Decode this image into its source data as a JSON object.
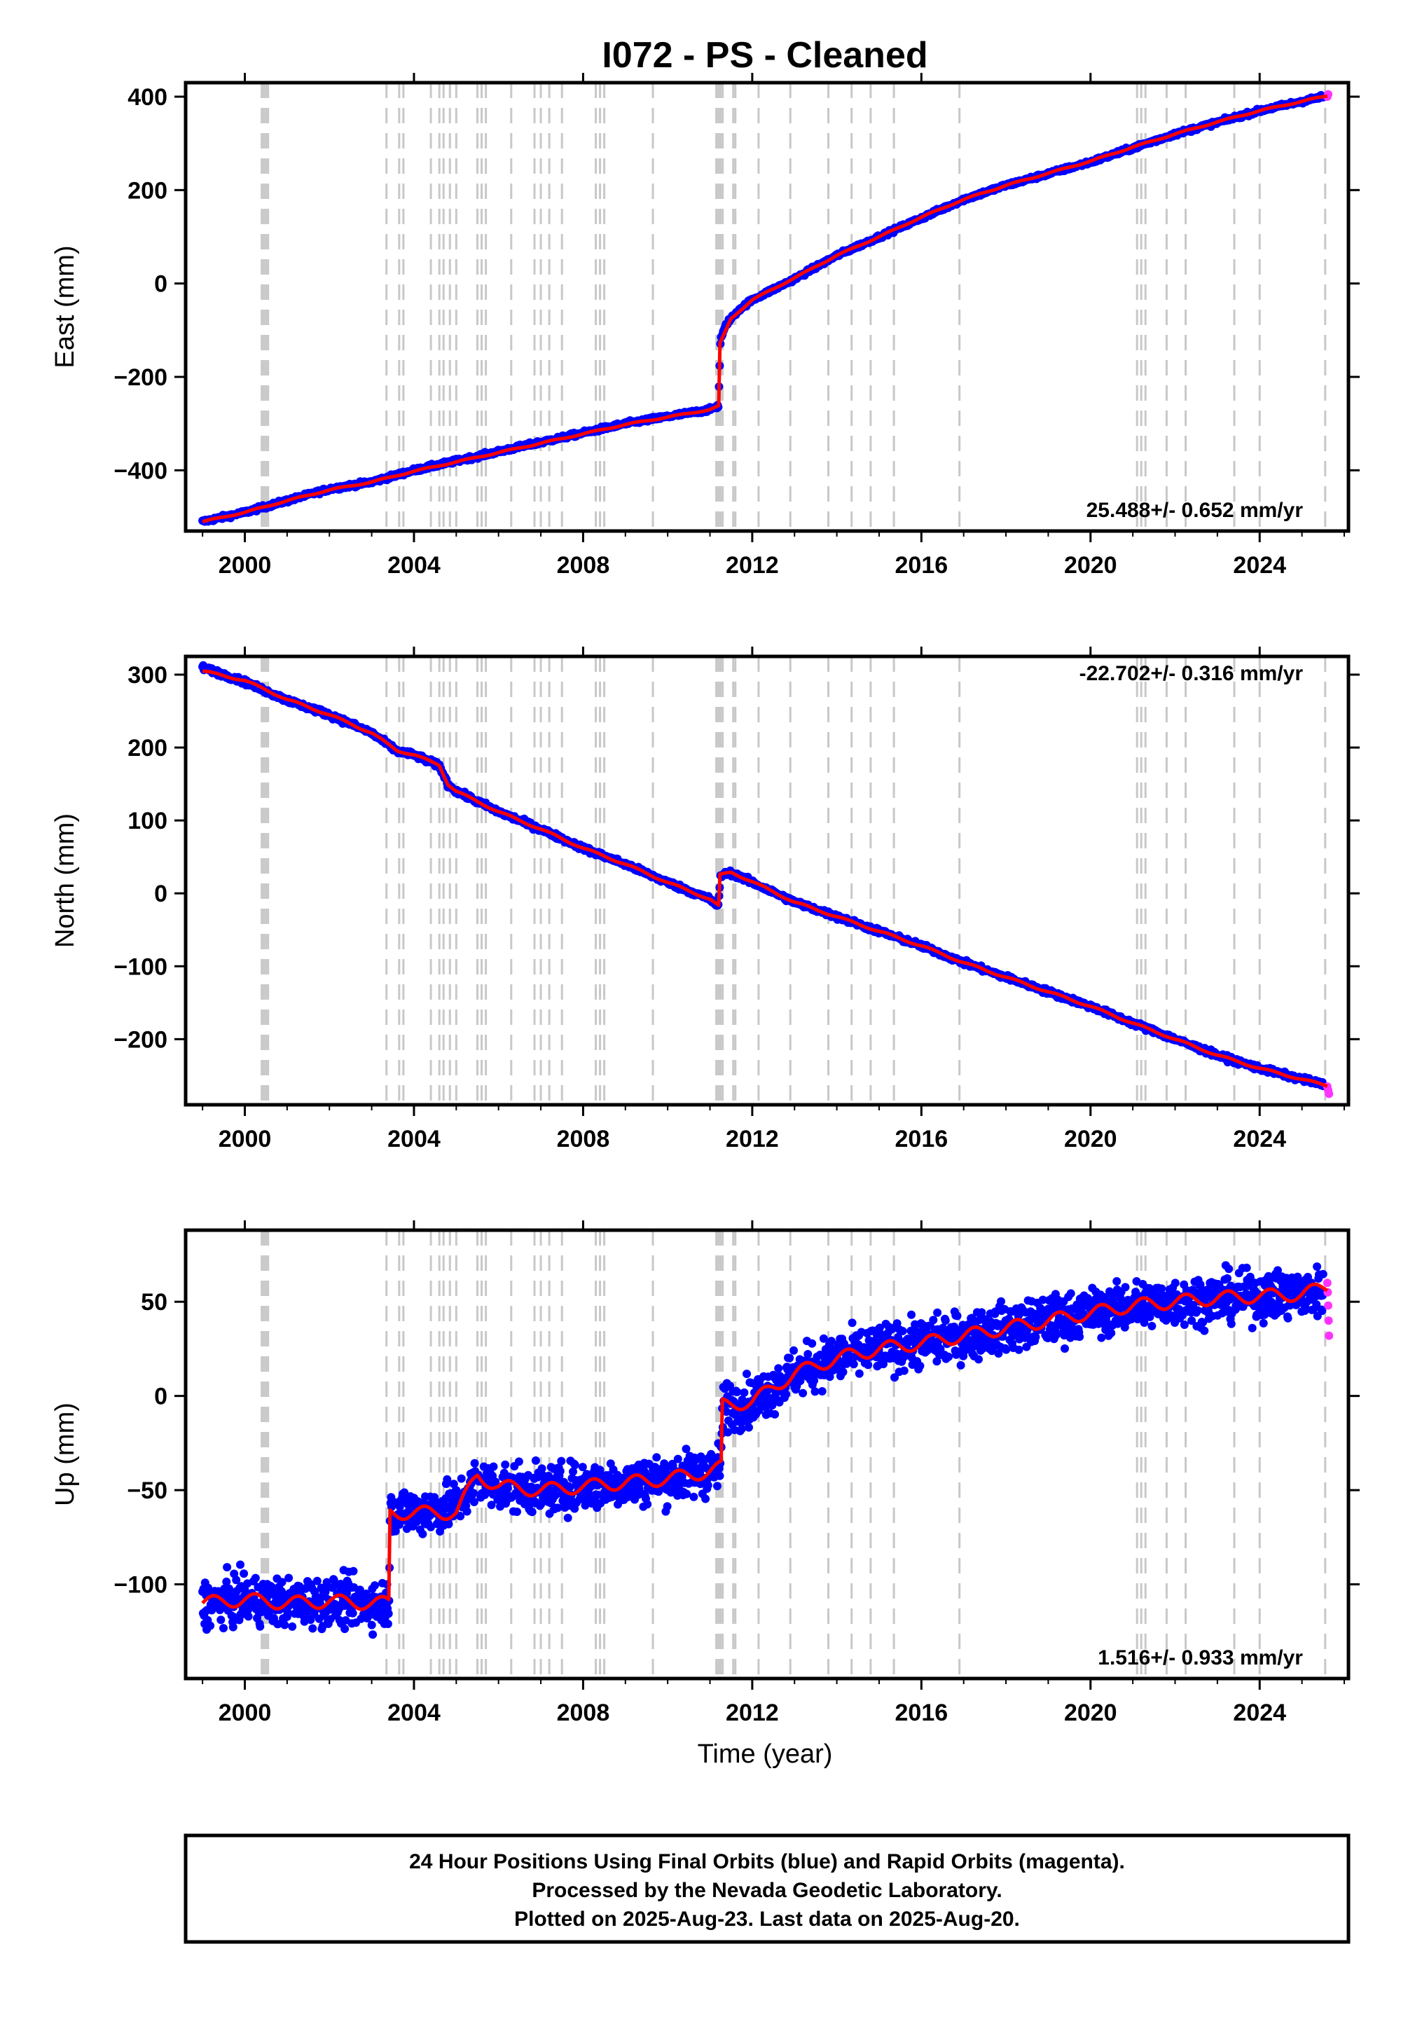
{
  "title": "I072  - PS - Cleaned",
  "xlabel": "Time (year)",
  "x_ticks": [
    2000,
    2004,
    2008,
    2012,
    2016,
    2020,
    2024
  ],
  "x_range": [
    1998.6,
    2026.1
  ],
  "colors": {
    "final_orbits": "#0000ff",
    "rapid_orbits": "#ff33ff",
    "model": "#ff0000",
    "event_lines": "#c8c8c8",
    "frame": "#000000"
  },
  "event_lines": [
    2000.4,
    2000.45,
    2000.5,
    2000.55,
    2003.35,
    2003.65,
    2003.75,
    2004.4,
    2004.6,
    2004.7,
    2004.85,
    2005.0,
    2005.5,
    2005.6,
    2005.7,
    2006.3,
    2006.85,
    2007.0,
    2007.2,
    2007.5,
    2008.3,
    2008.4,
    2008.5,
    2009.65,
    2011.15,
    2011.2,
    2011.25,
    2011.3,
    2011.55,
    2011.6,
    2012.15,
    2012.9,
    2013.8,
    2014.35,
    2014.8,
    2015.35,
    2016.9,
    2021.1,
    2021.2,
    2021.3,
    2021.8,
    2022.25,
    2023.4,
    2024.0,
    2025.55
  ],
  "chart_data": [
    {
      "type": "scatter",
      "title": "I072  - PS - Cleaned",
      "xlabel": "",
      "ylabel": "East (mm)",
      "xlim": [
        1998.6,
        2026.1
      ],
      "ylim": [
        -530,
        430
      ],
      "yticks": [
        -400,
        -200,
        0,
        200,
        400
      ],
      "rate": "25.488+/- 0.652 mm/yr",
      "rate_position": "bottom-right",
      "series": [
        {
          "name": "Final Orbits",
          "x": [
            1999.0,
            2000.0,
            2001.0,
            2002.0,
            2003.0,
            2004.0,
            2005.0,
            2006.0,
            2007.0,
            2008.0,
            2009.0,
            2010.0,
            2011.0,
            2011.2,
            2011.25,
            2011.4,
            2011.7,
            2012.0,
            2013.0,
            2014.0,
            2015.0,
            2016.0,
            2017.0,
            2018.0,
            2019.0,
            2020.0,
            2021.0,
            2022.0,
            2023.0,
            2024.0,
            2025.0,
            2025.5
          ],
          "y": [
            -510,
            -490,
            -465,
            -440,
            -425,
            -400,
            -380,
            -360,
            -340,
            -320,
            -300,
            -285,
            -270,
            -262,
            -120,
            -85,
            -55,
            -35,
            10,
            60,
            100,
            140,
            180,
            210,
            235,
            260,
            290,
            320,
            345,
            370,
            390,
            400
          ]
        },
        {
          "name": "Rapid Orbits",
          "x": [
            2025.6,
            2025.62
          ],
          "y": [
            400,
            405
          ]
        }
      ],
      "model": {
        "x": [
          1999.0,
          2000.0,
          2001.0,
          2002.0,
          2003.0,
          2004.0,
          2005.0,
          2006.0,
          2007.0,
          2008.0,
          2009.0,
          2010.0,
          2011.0,
          2011.22,
          2011.23,
          2011.5,
          2012.0,
          2013.0,
          2014.0,
          2015.0,
          2016.0,
          2017.0,
          2018.0,
          2019.0,
          2020.0,
          2021.0,
          2022.0,
          2023.0,
          2024.0,
          2025.0,
          2025.6
        ],
        "y": [
          -510,
          -490,
          -465,
          -442,
          -425,
          -402,
          -382,
          -362,
          -342,
          -322,
          -302,
          -286,
          -270,
          -262,
          -130,
          -75,
          -35,
          12,
          60,
          100,
          142,
          180,
          210,
          236,
          262,
          292,
          320,
          346,
          370,
          390,
          402
        ]
      }
    },
    {
      "type": "scatter",
      "title": "",
      "xlabel": "",
      "ylabel": "North (mm)",
      "xlim": [
        1998.6,
        2026.1
      ],
      "ylim": [
        -290,
        325
      ],
      "yticks": [
        -200,
        -100,
        0,
        100,
        200,
        300
      ],
      "rate": "-22.702+/- 0.316 mm/yr",
      "rate_position": "top-right",
      "series": [
        {
          "name": "Final Orbits",
          "x": [
            1999.0,
            2000.0,
            2001.0,
            2002.0,
            2003.0,
            2003.6,
            2004.0,
            2004.6,
            2004.8,
            2005.0,
            2006.0,
            2007.0,
            2008.0,
            2009.0,
            2010.0,
            2011.0,
            2011.2,
            2011.25,
            2011.5,
            2012.0,
            2013.0,
            2014.0,
            2015.0,
            2016.0,
            2017.0,
            2018.0,
            2019.0,
            2020.0,
            2021.0,
            2022.0,
            2023.0,
            2024.0,
            2025.0,
            2025.5
          ],
          "y": [
            310,
            290,
            265,
            245,
            220,
            195,
            190,
            175,
            150,
            140,
            112,
            88,
            62,
            40,
            15,
            -8,
            -18,
            25,
            28,
            15,
            -12,
            -32,
            -52,
            -72,
            -95,
            -115,
            -135,
            -155,
            -178,
            -200,
            -222,
            -240,
            -255,
            -262
          ]
        },
        {
          "name": "Rapid Orbits",
          "x": [
            2025.6,
            2025.62,
            2025.64
          ],
          "y": [
            -265,
            -270,
            -275
          ]
        }
      ],
      "model": {
        "x": [
          1999.0,
          2000.0,
          2001.0,
          2002.0,
          2003.0,
          2003.6,
          2004.0,
          2004.6,
          2004.8,
          2005.0,
          2006.0,
          2007.0,
          2008.0,
          2009.0,
          2010.0,
          2011.0,
          2011.22,
          2011.23,
          2011.5,
          2012.0,
          2013.0,
          2014.0,
          2015.0,
          2016.0,
          2017.0,
          2018.0,
          2019.0,
          2020.0,
          2021.0,
          2022.0,
          2023.0,
          2024.0,
          2025.0,
          2025.6
        ],
        "y": [
          305,
          292,
          266,
          245,
          220,
          196,
          190,
          176,
          150,
          140,
          112,
          88,
          62,
          40,
          15,
          -8,
          -18,
          25,
          29,
          16,
          -12,
          -32,
          -52,
          -72,
          -95,
          -115,
          -135,
          -155,
          -178,
          -200,
          -222,
          -240,
          -255,
          -264
        ]
      }
    },
    {
      "type": "scatter",
      "title": "",
      "xlabel": "Time (year)",
      "ylabel": "Up (mm)",
      "xlim": [
        1998.6,
        2026.1
      ],
      "ylim": [
        -150,
        88
      ],
      "yticks": [
        -100,
        -50,
        0,
        50
      ],
      "rate": "1.516+/- 0.933 mm/yr",
      "rate_position": "bottom-right",
      "series": [
        {
          "name": "Final Orbits",
          "x": [
            1999.0,
            2000.0,
            2001.0,
            2002.0,
            2003.0,
            2003.4,
            2003.45,
            2004.0,
            2005.0,
            2005.5,
            2006.0,
            2007.0,
            2008.0,
            2009.0,
            2010.0,
            2011.0,
            2011.25,
            2011.3,
            2012.0,
            2013.0,
            2014.0,
            2015.0,
            2016.0,
            2017.0,
            2018.0,
            2019.0,
            2020.0,
            2021.0,
            2022.0,
            2023.0,
            2024.0,
            2025.0,
            2025.5
          ],
          "y": [
            -110,
            -108,
            -110,
            -109,
            -110,
            -110,
            -60,
            -62,
            -58,
            -45,
            -48,
            -50,
            -48,
            -46,
            -44,
            -40,
            -38,
            -5,
            -3,
            12,
            20,
            25,
            28,
            32,
            36,
            40,
            44,
            48,
            50,
            52,
            53,
            54,
            56
          ]
        },
        {
          "name": "Rapid Orbits",
          "x": [
            2025.6,
            2025.61,
            2025.62,
            2025.63,
            2025.64
          ],
          "y": [
            60,
            55,
            48,
            40,
            32
          ]
        }
      ],
      "model": {
        "x": [
          1999.0,
          2000.0,
          2001.0,
          2002.0,
          2003.0,
          2003.42,
          2003.43,
          2004.0,
          2005.0,
          2005.5,
          2006.0,
          2007.0,
          2008.0,
          2009.0,
          2010.0,
          2011.0,
          2011.27,
          2011.28,
          2012.0,
          2013.0,
          2014.0,
          2015.0,
          2016.0,
          2017.0,
          2018.0,
          2019.0,
          2020.0,
          2021.0,
          2022.0,
          2023.0,
          2024.0,
          2025.0,
          2025.6
        ],
        "y": [
          -110,
          -108,
          -110,
          -109,
          -110,
          -110,
          -62,
          -62,
          -62,
          -42,
          -48,
          -50,
          -48,
          -46,
          -44,
          -40,
          -38,
          -5,
          -3,
          12,
          20,
          25,
          28,
          32,
          36,
          40,
          44,
          48,
          50,
          52,
          53,
          54,
          58
        ]
      }
    }
  ],
  "footer": {
    "line1": "24 Hour Positions Using Final Orbits (blue) and Rapid Orbits (magenta).",
    "line2": "Processed by the Nevada Geodetic Laboratory.",
    "line3": "Plotted on 2025-Aug-23. Last data on 2025-Aug-20."
  }
}
